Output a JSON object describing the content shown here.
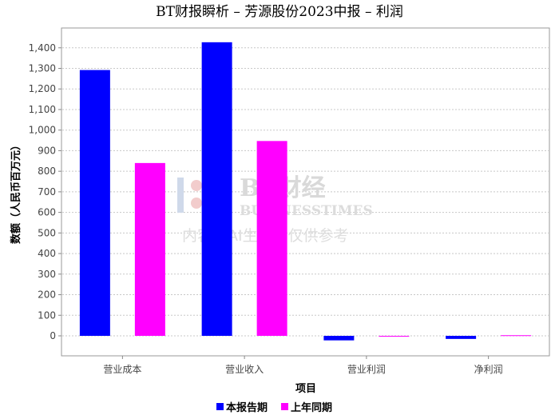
{
  "chart_data": {
    "type": "bar",
    "title": "BT财报瞬析 – 芳源股份2023中报 – 利润",
    "xlabel": "项目",
    "ylabel": "数额（人民币百万元）",
    "categories": [
      "营业成本",
      "营业收入",
      "营业利润",
      "净利润"
    ],
    "series": [
      {
        "name": "本报告期",
        "color": "#0000ff",
        "values": [
          1292,
          1427,
          -22,
          -15
        ]
      },
      {
        "name": "上年同期",
        "color": "#ff00ff",
        "values": [
          840,
          947,
          -3,
          3
        ]
      }
    ],
    "ylim": [
      -100,
      1500
    ],
    "yticks": [
      0,
      100,
      200,
      300,
      400,
      500,
      600,
      700,
      800,
      900,
      1000,
      1100,
      1200,
      1300,
      1400
    ],
    "ytick_labels": [
      "0",
      "100",
      "200",
      "300",
      "400",
      "500",
      "600",
      "700",
      "800",
      "900",
      "1,000",
      "1,100",
      "1,200",
      "1,300",
      "1,400"
    ],
    "grid": true,
    "legend_position": "bottom"
  },
  "watermark": {
    "brand": "BT财经",
    "sub": "BUSINESSTIMES",
    "note": "内容由AI生成，仅供参考"
  }
}
